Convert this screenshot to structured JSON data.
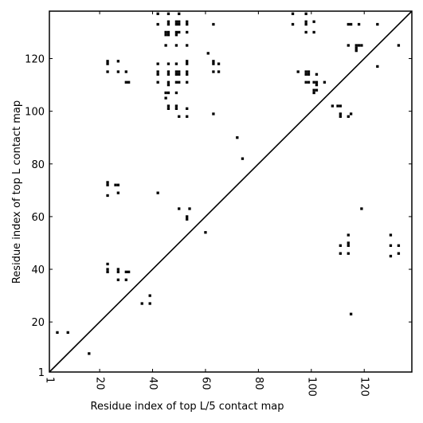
{
  "chart_data": {
    "type": "scatter",
    "title": "",
    "xlabel": "Residue index of top L/5 contact map",
    "ylabel": "Residue index of top L contact map",
    "xlim": [
      1,
      138
    ],
    "ylim": [
      1,
      138
    ],
    "xticks": [
      1,
      20,
      40,
      60,
      80,
      100,
      120
    ],
    "yticks": [
      1,
      20,
      40,
      60,
      80,
      100,
      120
    ],
    "diagonal": true,
    "marker_color": "#000000",
    "series": [
      {
        "name": "",
        "points": [
          [
            4,
            16
          ],
          [
            8,
            16
          ],
          [
            16,
            8
          ],
          [
            36,
            27
          ],
          [
            39,
            27
          ],
          [
            39,
            30
          ],
          [
            23,
            39
          ],
          [
            23,
            40
          ],
          [
            23,
            42
          ],
          [
            27,
            36
          ],
          [
            27,
            39
          ],
          [
            27,
            40
          ],
          [
            30,
            36
          ],
          [
            30,
            39
          ],
          [
            31,
            39
          ],
          [
            23,
            68
          ],
          [
            23,
            72
          ],
          [
            23,
            73
          ],
          [
            26,
            72
          ],
          [
            27,
            72
          ],
          [
            27,
            69
          ],
          [
            42,
            69
          ],
          [
            50,
            63
          ],
          [
            53,
            59
          ],
          [
            53,
            60
          ],
          [
            54,
            63
          ],
          [
            60,
            54
          ],
          [
            72,
            90
          ],
          [
            74,
            82
          ],
          [
            42,
            111
          ],
          [
            42,
            114
          ],
          [
            42,
            115
          ],
          [
            42,
            118
          ],
          [
            45,
            107
          ],
          [
            45,
            105
          ],
          [
            46,
            107
          ],
          [
            46,
            110
          ],
          [
            46,
            111
          ],
          [
            46,
            114
          ],
          [
            46,
            115
          ],
          [
            46,
            118
          ],
          [
            46,
            101
          ],
          [
            46,
            102
          ],
          [
            49,
            101
          ],
          [
            49,
            102
          ],
          [
            49,
            107
          ],
          [
            49,
            111
          ],
          [
            49,
            114
          ],
          [
            49,
            115
          ],
          [
            49,
            118
          ],
          [
            50,
            111
          ],
          [
            50,
            114
          ],
          [
            50,
            115
          ],
          [
            50,
            98
          ],
          [
            53,
            98
          ],
          [
            53,
            101
          ],
          [
            53,
            111
          ],
          [
            53,
            114
          ],
          [
            53,
            115
          ],
          [
            53,
            118
          ],
          [
            53,
            119
          ],
          [
            61,
            122
          ],
          [
            63,
            99
          ],
          [
            63,
            115
          ],
          [
            63,
            118
          ],
          [
            63,
            119
          ],
          [
            65,
            115
          ],
          [
            65,
            118
          ],
          [
            23,
            115
          ],
          [
            23,
            118
          ],
          [
            23,
            119
          ],
          [
            27,
            115
          ],
          [
            27,
            119
          ],
          [
            30,
            111
          ],
          [
            31,
            111
          ],
          [
            30,
            115
          ],
          [
            42,
            133
          ],
          [
            42,
            137
          ],
          [
            45,
            125
          ],
          [
            45,
            129
          ],
          [
            45,
            130
          ],
          [
            46,
            129
          ],
          [
            46,
            130
          ],
          [
            46,
            133
          ],
          [
            46,
            134
          ],
          [
            46,
            137
          ],
          [
            49,
            125
          ],
          [
            49,
            129
          ],
          [
            49,
            130
          ],
          [
            49,
            133
          ],
          [
            49,
            134
          ],
          [
            50,
            130
          ],
          [
            50,
            133
          ],
          [
            50,
            134
          ],
          [
            50,
            137
          ],
          [
            53,
            125
          ],
          [
            53,
            130
          ],
          [
            53,
            133
          ],
          [
            53,
            134
          ],
          [
            63,
            133
          ],
          [
            93,
            133
          ],
          [
            93,
            137
          ],
          [
            98,
            130
          ],
          [
            98,
            133
          ],
          [
            98,
            134
          ],
          [
            98,
            137
          ],
          [
            101,
            130
          ],
          [
            101,
            134
          ],
          [
            95,
            115
          ],
          [
            98,
            114
          ],
          [
            98,
            115
          ],
          [
            99,
            114
          ],
          [
            99,
            115
          ],
          [
            98,
            111
          ],
          [
            99,
            111
          ],
          [
            101,
            111
          ],
          [
            102,
            110
          ],
          [
            102,
            111
          ],
          [
            102,
            114
          ],
          [
            101,
            108
          ],
          [
            102,
            108
          ],
          [
            101,
            107
          ],
          [
            105,
            111
          ],
          [
            108,
            102
          ],
          [
            110,
            102
          ],
          [
            111,
            98
          ],
          [
            111,
            99
          ],
          [
            111,
            102
          ],
          [
            114,
            98
          ],
          [
            115,
            99
          ],
          [
            114,
            125
          ],
          [
            114,
            133
          ],
          [
            115,
            133
          ],
          [
            117,
            123
          ],
          [
            117,
            124
          ],
          [
            117,
            125
          ],
          [
            118,
            125
          ],
          [
            119,
            125
          ],
          [
            118,
            133
          ],
          [
            125,
            117
          ],
          [
            125,
            133
          ],
          [
            133,
            125
          ],
          [
            111,
            46
          ],
          [
            111,
            49
          ],
          [
            114,
            46
          ],
          [
            114,
            49
          ],
          [
            114,
            50
          ],
          [
            114,
            53
          ],
          [
            115,
            23
          ],
          [
            119,
            63
          ],
          [
            130,
            45
          ],
          [
            130,
            49
          ],
          [
            130,
            53
          ],
          [
            133,
            46
          ],
          [
            133,
            49
          ]
        ]
      }
    ]
  }
}
